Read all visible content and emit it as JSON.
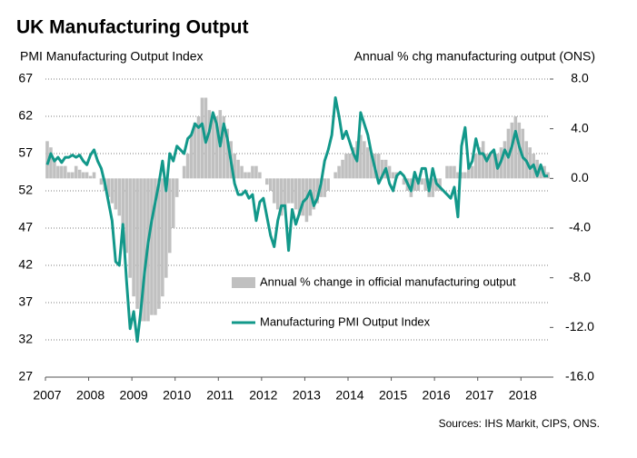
{
  "chart_data": {
    "type": "combo",
    "title": "UK Manufacturing Output",
    "y_label": "PMI Manufacturing Output Index",
    "y2_label": "Annual % chg manufacturing output (ONS)",
    "source": "Sources: IHS Markit, CIPS, ONS.",
    "categories": [
      "2007",
      null,
      null,
      null,
      null,
      null,
      null,
      null,
      null,
      null,
      null,
      null,
      "2008",
      null,
      null,
      null,
      null,
      null,
      null,
      null,
      null,
      null,
      null,
      null,
      "2009",
      null,
      null,
      null,
      null,
      null,
      null,
      null,
      null,
      null,
      null,
      null,
      "2010",
      null,
      null,
      null,
      null,
      null,
      null,
      null,
      null,
      null,
      null,
      null,
      "2011",
      null,
      null,
      null,
      null,
      null,
      null,
      null,
      null,
      null,
      null,
      null,
      "2012",
      null,
      null,
      null,
      null,
      null,
      null,
      null,
      null,
      null,
      null,
      null,
      "2013",
      null,
      null,
      null,
      null,
      null,
      null,
      null,
      null,
      null,
      null,
      null,
      "2014",
      null,
      null,
      null,
      null,
      null,
      null,
      null,
      null,
      null,
      null,
      null,
      "2015",
      null,
      null,
      null,
      null,
      null,
      null,
      null,
      null,
      null,
      null,
      null,
      "2016",
      null,
      null,
      null,
      null,
      null,
      null,
      null,
      null,
      null,
      null,
      null,
      "2017",
      null,
      null,
      null,
      null,
      null,
      null,
      null,
      null,
      null,
      null,
      null,
      "2018",
      null,
      null,
      null,
      null,
      null,
      null,
      null
    ],
    "series": [
      {
        "name": "Annual % change in official manufacturing output",
        "type": "bar",
        "axis": "y2",
        "color": "#c0c0c0",
        "values": [
          3,
          2.5,
          1.5,
          1,
          1,
          1,
          0.5,
          0.5,
          1,
          0.7,
          0.5,
          0.5,
          0.2,
          0.5,
          0,
          -0.5,
          -1,
          -1.5,
          -2,
          -2.5,
          -3,
          -4.5,
          -6,
          -8,
          -9.5,
          -10.5,
          -11.5,
          -11.5,
          -11.5,
          -11,
          -11,
          -10.5,
          -9.5,
          -8,
          -6,
          -4,
          -1.5,
          0,
          1,
          2,
          3.5,
          4.5,
          5,
          6.5,
          6.5,
          5.5,
          5,
          5,
          5.5,
          5,
          4,
          3,
          2,
          1.5,
          1,
          0.5,
          0.5,
          1,
          1,
          0.5,
          0,
          -0.5,
          -1,
          -2,
          -2.5,
          -3,
          -2.5,
          -2,
          -2,
          -2.5,
          -3,
          -3,
          -3.5,
          -3,
          -2.5,
          -2,
          -1.5,
          -1.5,
          -1,
          0,
          0.5,
          1,
          1.5,
          2,
          2,
          2.5,
          3,
          3.5,
          3,
          2.5,
          2,
          2,
          2,
          1.5,
          1.5,
          1,
          0.5,
          0.5,
          0,
          -0.5,
          -1,
          -1.5,
          -1,
          -1,
          -0.5,
          -1,
          -1.5,
          -1.5,
          -1,
          -1,
          0,
          1,
          1,
          1,
          0.5,
          0.5,
          0.5,
          1,
          1,
          2,
          2.5,
          3,
          2,
          2,
          2,
          2,
          2.5,
          3,
          4,
          4.5,
          5,
          4.5,
          4,
          3,
          2.5,
          2,
          1.5,
          1,
          1,
          0.5
        ]
      },
      {
        "name": "Manufacturing PMI Output Index",
        "type": "line",
        "color": "#12988a",
        "values": [
          55.5,
          57,
          56,
          56.5,
          55.8,
          56.5,
          56.5,
          56.8,
          56.5,
          56.8,
          56,
          55.5,
          56.8,
          57.5,
          56,
          55,
          53,
          50.5,
          48,
          42.5,
          42,
          47.5,
          40,
          33.5,
          35.8,
          31.8,
          36,
          41,
          45,
          48,
          50.5,
          53,
          56,
          52,
          57,
          56,
          58,
          57.5,
          57,
          59,
          59.5,
          61,
          60.5,
          61,
          58.5,
          60,
          62.5,
          61,
          58,
          61,
          59,
          56,
          53,
          51.5,
          51.5,
          52,
          51,
          51.5,
          48,
          50.5,
          51,
          48.5,
          46,
          44.5,
          48,
          50,
          50,
          44,
          49.5,
          47.5,
          49,
          50.5,
          51,
          52,
          50,
          51,
          53,
          56,
          57.5,
          59.5,
          64.5,
          62,
          59,
          60,
          58.5,
          57,
          56,
          62.5,
          61,
          59.5,
          57,
          55,
          53,
          54,
          55,
          53,
          52,
          54,
          54.5,
          54,
          53,
          52,
          54.5,
          53,
          55,
          55,
          52,
          55,
          53,
          52.5,
          52,
          51.5,
          51,
          52.5,
          48.5,
          58,
          60.5,
          55,
          56,
          59,
          57,
          57,
          56,
          57,
          57.5,
          55,
          56,
          57.5,
          56.5,
          58,
          60,
          58,
          56.5,
          56,
          55,
          55.5,
          54,
          55.5,
          54,
          54
        ]
      }
    ],
    "ylim": [
      27,
      67
    ],
    "yticks": [
      27,
      32,
      37,
      42,
      47,
      52,
      57,
      62,
      67
    ],
    "y2lim": [
      -16,
      8
    ],
    "y2ticks": [
      {
        "value": -16,
        "label": "-16.0"
      },
      {
        "value": -12,
        "label": "-12.0"
      },
      {
        "value": -8,
        "label": "-8.0"
      },
      {
        "value": -4,
        "label": "-4.0"
      },
      {
        "value": 0,
        "label": "0.0"
      },
      {
        "value": 4,
        "label": "4.0"
      },
      {
        "value": 8,
        "label": "8.0"
      }
    ],
    "grid": true,
    "legend": "bottom"
  }
}
